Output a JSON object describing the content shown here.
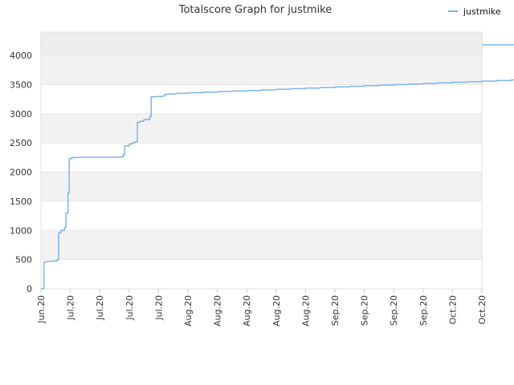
{
  "chart_data": {
    "type": "line",
    "title": "Totalscore Graph for justmike",
    "xlabel": "",
    "ylabel": "",
    "ylim": [
      0,
      4400
    ],
    "y_ticks": [
      0,
      500,
      1000,
      1500,
      2000,
      2500,
      3000,
      3500,
      4000
    ],
    "x_tick_labels": [
      "Jun.20",
      "Jul.20",
      "Jul.20",
      "Jul.20",
      "Jul.20",
      "Aug.20",
      "Aug.20",
      "Aug.20",
      "Aug.20",
      "Aug.20",
      "Sep.20",
      "Sep.20",
      "Sep.20",
      "Sep.20",
      "Oct.20",
      "Oct.20"
    ],
    "grid": true,
    "legend_position": "top-right",
    "series": [
      {
        "name": "justmike",
        "color": "#7cb5ec",
        "points": [
          [
            0.0,
            0
          ],
          [
            0.1,
            460
          ],
          [
            0.2,
            470
          ],
          [
            0.4,
            475
          ],
          [
            0.55,
            500
          ],
          [
            0.6,
            960
          ],
          [
            0.68,
            1000
          ],
          [
            0.8,
            1050
          ],
          [
            0.85,
            1300
          ],
          [
            0.92,
            1650
          ],
          [
            0.96,
            2230
          ],
          [
            1.05,
            2250
          ],
          [
            1.3,
            2255
          ],
          [
            1.8,
            2255
          ],
          [
            2.3,
            2255
          ],
          [
            2.7,
            2260
          ],
          [
            2.8,
            2300
          ],
          [
            2.85,
            2450
          ],
          [
            3.0,
            2480
          ],
          [
            3.1,
            2500
          ],
          [
            3.2,
            2520
          ],
          [
            3.28,
            2850
          ],
          [
            3.35,
            2870
          ],
          [
            3.5,
            2900
          ],
          [
            3.7,
            2950
          ],
          [
            3.75,
            3290
          ],
          [
            3.9,
            3295
          ],
          [
            4.1,
            3300
          ],
          [
            4.2,
            3330
          ],
          [
            4.3,
            3340
          ],
          [
            4.6,
            3350
          ],
          [
            5.0,
            3360
          ],
          [
            5.5,
            3370
          ],
          [
            6.0,
            3380
          ],
          [
            6.5,
            3390
          ],
          [
            7.0,
            3400
          ],
          [
            7.5,
            3410
          ],
          [
            8.0,
            3420
          ],
          [
            8.5,
            3430
          ],
          [
            9.0,
            3440
          ],
          [
            9.5,
            3450
          ],
          [
            10.0,
            3460
          ],
          [
            10.5,
            3470
          ],
          [
            11.0,
            3480
          ],
          [
            11.5,
            3490
          ],
          [
            12.0,
            3500
          ],
          [
            12.5,
            3510
          ],
          [
            13.0,
            3520
          ],
          [
            13.5,
            3530
          ],
          [
            14.0,
            3540
          ],
          [
            14.5,
            3550
          ],
          [
            15.0,
            3560
          ],
          [
            15.5,
            3570
          ],
          [
            16.0,
            3580
          ],
          [
            16.5,
            3590
          ],
          [
            17.0,
            3600
          ],
          [
            17.5,
            3620
          ],
          [
            18.0,
            3640
          ],
          [
            18.4,
            3660
          ],
          [
            18.9,
            3680
          ],
          [
            19.3,
            3700
          ],
          [
            19.6,
            3720
          ],
          [
            19.9,
            3740
          ],
          [
            20.2,
            3760
          ],
          [
            20.5,
            3780
          ],
          [
            20.8,
            3800
          ],
          [
            21.1,
            3820
          ],
          [
            21.4,
            3840
          ],
          [
            21.7,
            3860
          ],
          [
            22.0,
            3880
          ],
          [
            22.3,
            3900
          ],
          [
            22.6,
            3920
          ],
          [
            22.9,
            3940
          ],
          [
            23.2,
            3960
          ],
          [
            23.5,
            3980
          ],
          [
            23.8,
            4000
          ],
          [
            24.1,
            4020
          ],
          [
            24.4,
            4040
          ],
          [
            24.7,
            4060
          ],
          [
            25.0,
            4080
          ],
          [
            25.3,
            4100
          ],
          [
            25.6,
            4120
          ],
          [
            25.9,
            4140
          ],
          [
            26.2,
            4160
          ],
          [
            26.5,
            4170
          ],
          [
            27.0,
            4180
          ]
        ]
      }
    ]
  }
}
